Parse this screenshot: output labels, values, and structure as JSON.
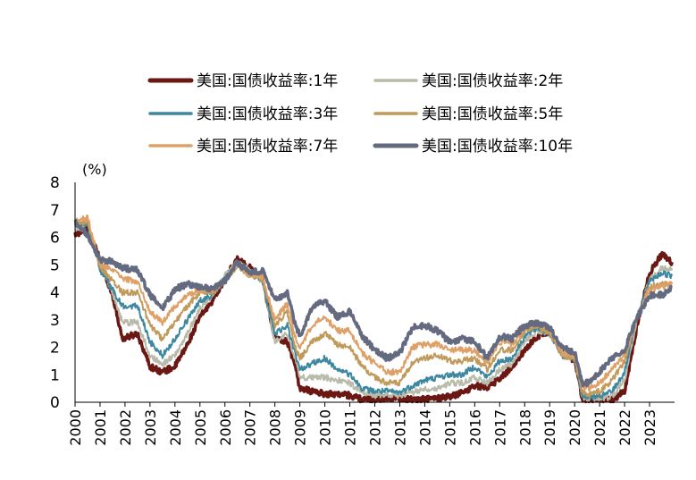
{
  "chart_data": {
    "type": "line",
    "ylabel": "(%)",
    "ylim": [
      0,
      8
    ],
    "yticks": [
      0,
      1,
      2,
      3,
      4,
      5,
      6,
      7,
      8
    ],
    "xlim": [
      2000,
      2024
    ],
    "xticks": [
      "2000",
      "2001",
      "2002",
      "2003",
      "2004",
      "2005",
      "2006",
      "2007",
      "2008",
      "2009",
      "2010",
      "2011",
      "2012",
      "2013",
      "2014",
      "2015",
      "2016",
      "2017",
      "2018",
      "2019",
      "2020",
      "2021",
      "2022",
      "2023"
    ],
    "x": [
      2000.0,
      2000.5,
      2001.0,
      2001.5,
      2001.9,
      2002.5,
      2003.0,
      2003.5,
      2004.0,
      2004.5,
      2005.0,
      2005.5,
      2006.0,
      2006.5,
      2007.0,
      2007.5,
      2008.0,
      2008.5,
      2008.8,
      2009.0,
      2009.5,
      2010.0,
      2010.5,
      2011.0,
      2011.5,
      2012.0,
      2012.5,
      2013.0,
      2013.5,
      2014.0,
      2014.5,
      2015.0,
      2015.5,
      2016.0,
      2016.5,
      2017.0,
      2017.5,
      2018.0,
      2018.5,
      2019.0,
      2019.5,
      2020.0,
      2020.3,
      2020.6,
      2021.0,
      2021.5,
      2022.0,
      2022.5,
      2023.0,
      2023.5,
      2023.9
    ],
    "series": [
      {
        "name": "美国:国债收益率:1年",
        "color": "#6b1713",
        "width": 3.5,
        "values": [
          6.1,
          6.3,
          5.2,
          3.9,
          2.3,
          2.5,
          1.3,
          1.1,
          1.3,
          2.1,
          3.1,
          3.7,
          4.5,
          5.2,
          4.9,
          4.5,
          2.3,
          2.2,
          1.4,
          0.5,
          0.4,
          0.3,
          0.3,
          0.25,
          0.1,
          0.12,
          0.15,
          0.14,
          0.1,
          0.12,
          0.13,
          0.2,
          0.35,
          0.6,
          0.55,
          0.85,
          1.3,
          1.9,
          2.4,
          2.6,
          1.9,
          1.5,
          0.15,
          0.1,
          0.1,
          0.07,
          0.4,
          2.8,
          4.7,
          5.4,
          5.1
        ]
      },
      {
        "name": "美国:国债收益率:2年",
        "color": "#b8bba9",
        "width": 2,
        "values": [
          6.3,
          6.5,
          5.0,
          3.9,
          2.9,
          2.9,
          1.7,
          1.4,
          1.7,
          2.5,
          3.4,
          3.9,
          4.6,
          5.1,
          4.8,
          4.4,
          2.2,
          2.5,
          1.6,
          0.9,
          0.9,
          0.9,
          0.8,
          0.7,
          0.35,
          0.25,
          0.3,
          0.25,
          0.35,
          0.5,
          0.5,
          0.7,
          0.7,
          0.9,
          0.7,
          1.2,
          1.4,
          2.2,
          2.6,
          2.5,
          1.8,
          1.6,
          0.2,
          0.15,
          0.15,
          0.2,
          0.8,
          3.0,
          4.5,
          4.9,
          4.8
        ]
      },
      {
        "name": "美国:国债收益率:3年",
        "color": "#3d87a0",
        "width": 2,
        "values": [
          6.4,
          6.5,
          4.8,
          4.1,
          3.5,
          3.5,
          2.2,
          1.7,
          2.3,
          3.0,
          3.7,
          3.9,
          4.5,
          5.0,
          4.7,
          4.4,
          2.5,
          2.8,
          1.8,
          1.2,
          1.4,
          1.6,
          1.2,
          1.0,
          0.5,
          0.4,
          0.4,
          0.35,
          0.6,
          0.8,
          0.9,
          1.0,
          1.0,
          1.3,
          0.9,
          1.5,
          1.6,
          2.4,
          2.7,
          2.5,
          1.7,
          1.6,
          0.25,
          0.2,
          0.2,
          0.4,
          1.1,
          3.1,
          4.4,
          4.7,
          4.6
        ]
      },
      {
        "name": "美国:国债收益率:5年",
        "color": "#c09a5a",
        "width": 2,
        "values": [
          6.5,
          6.6,
          4.9,
          4.4,
          4.0,
          4.0,
          2.8,
          2.3,
          2.9,
          3.5,
          4.0,
          4.0,
          4.4,
          5.0,
          4.6,
          4.5,
          2.8,
          3.3,
          2.0,
          1.6,
          2.2,
          2.5,
          2.1,
          2.0,
          1.3,
          0.9,
          0.7,
          0.7,
          1.4,
          1.6,
          1.7,
          1.5,
          1.5,
          1.6,
          1.2,
          1.9,
          1.9,
          2.6,
          2.8,
          2.5,
          1.7,
          1.6,
          0.35,
          0.3,
          0.4,
          0.8,
          1.5,
          3.1,
          4.2,
          4.3,
          4.3
        ]
      },
      {
        "name": "美国:国债收益率:7年",
        "color": "#dfa068",
        "width": 2,
        "values": [
          6.6,
          6.7,
          5.0,
          4.8,
          4.5,
          4.4,
          3.3,
          2.9,
          3.5,
          3.9,
          4.1,
          4.1,
          4.4,
          5.0,
          4.6,
          4.6,
          3.0,
          3.6,
          2.4,
          2.0,
          2.8,
          3.1,
          2.6,
          2.6,
          1.8,
          1.4,
          1.1,
          1.1,
          2.0,
          2.1,
          2.1,
          1.9,
          1.9,
          1.9,
          1.4,
          2.2,
          2.1,
          2.7,
          2.9,
          2.6,
          1.8,
          1.7,
          0.55,
          0.5,
          0.7,
          1.2,
          1.7,
          3.1,
          4.1,
          4.2,
          4.3
        ]
      },
      {
        "name": "美国:国债收益率:10年",
        "color": "#646a80",
        "width": 3.5,
        "values": [
          6.6,
          6.1,
          5.2,
          5.1,
          4.9,
          4.8,
          3.9,
          3.4,
          4.1,
          4.3,
          4.2,
          4.1,
          4.4,
          5.1,
          4.7,
          4.8,
          3.7,
          4.0,
          2.9,
          2.4,
          3.5,
          3.7,
          3.1,
          3.3,
          2.4,
          1.9,
          1.6,
          1.8,
          2.7,
          2.8,
          2.6,
          2.2,
          2.3,
          2.2,
          1.6,
          2.4,
          2.3,
          2.8,
          2.9,
          2.7,
          2.0,
          1.8,
          0.7,
          0.7,
          1.1,
          1.6,
          1.9,
          3.1,
          3.9,
          3.9,
          4.2
        ]
      }
    ]
  }
}
